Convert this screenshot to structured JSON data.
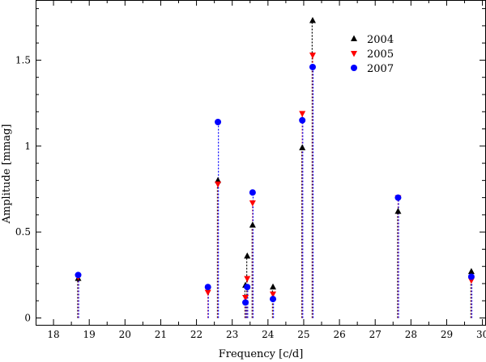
{
  "chart_data": {
    "type": "scatter",
    "title": "",
    "xlabel": "Frequency [c/d]",
    "ylabel": "Amplitude [mmag]",
    "xlim": [
      17.5,
      30.1
    ],
    "ylim": [
      -0.04,
      1.85
    ],
    "x_ticks": [
      18,
      19,
      20,
      21,
      22,
      23,
      24,
      25,
      26,
      27,
      28,
      29,
      30
    ],
    "y_ticks": [
      0,
      0.5,
      1,
      1.5
    ],
    "y_tick_labels": [
      "0",
      "0.5",
      "1",
      "1.5"
    ],
    "grid": false,
    "legend_position": "top-right",
    "series": [
      {
        "name": "2004",
        "marker": "triangle-up",
        "color": "#000000",
        "stem_color": "#000000",
        "x": [
          18.69,
          22.6,
          23.37,
          23.42,
          23.57,
          24.14,
          24.96,
          25.25,
          27.64,
          29.69
        ],
        "y": [
          0.23,
          0.8,
          0.19,
          0.36,
          0.54,
          0.18,
          0.99,
          1.73,
          0.62,
          0.27
        ]
      },
      {
        "name": "2005",
        "marker": "triangle-down",
        "color": "#ff0000",
        "stem_color": "#cc0000",
        "x": [
          18.69,
          22.32,
          22.6,
          23.37,
          23.42,
          23.57,
          24.14,
          24.96,
          25.25,
          27.64,
          29.69
        ],
        "y": [
          0.24,
          0.15,
          0.78,
          0.12,
          0.23,
          0.67,
          0.14,
          1.19,
          1.53,
          0.7,
          0.22
        ]
      },
      {
        "name": "2007",
        "marker": "circle",
        "color": "#0000ff",
        "stem_color": "#0000ff",
        "x": [
          18.69,
          22.32,
          22.6,
          23.37,
          23.42,
          23.57,
          24.14,
          24.96,
          25.25,
          27.64,
          29.69
        ],
        "y": [
          0.25,
          0.18,
          1.14,
          0.09,
          0.18,
          0.73,
          0.11,
          1.15,
          1.46,
          0.7,
          0.24
        ]
      }
    ]
  }
}
